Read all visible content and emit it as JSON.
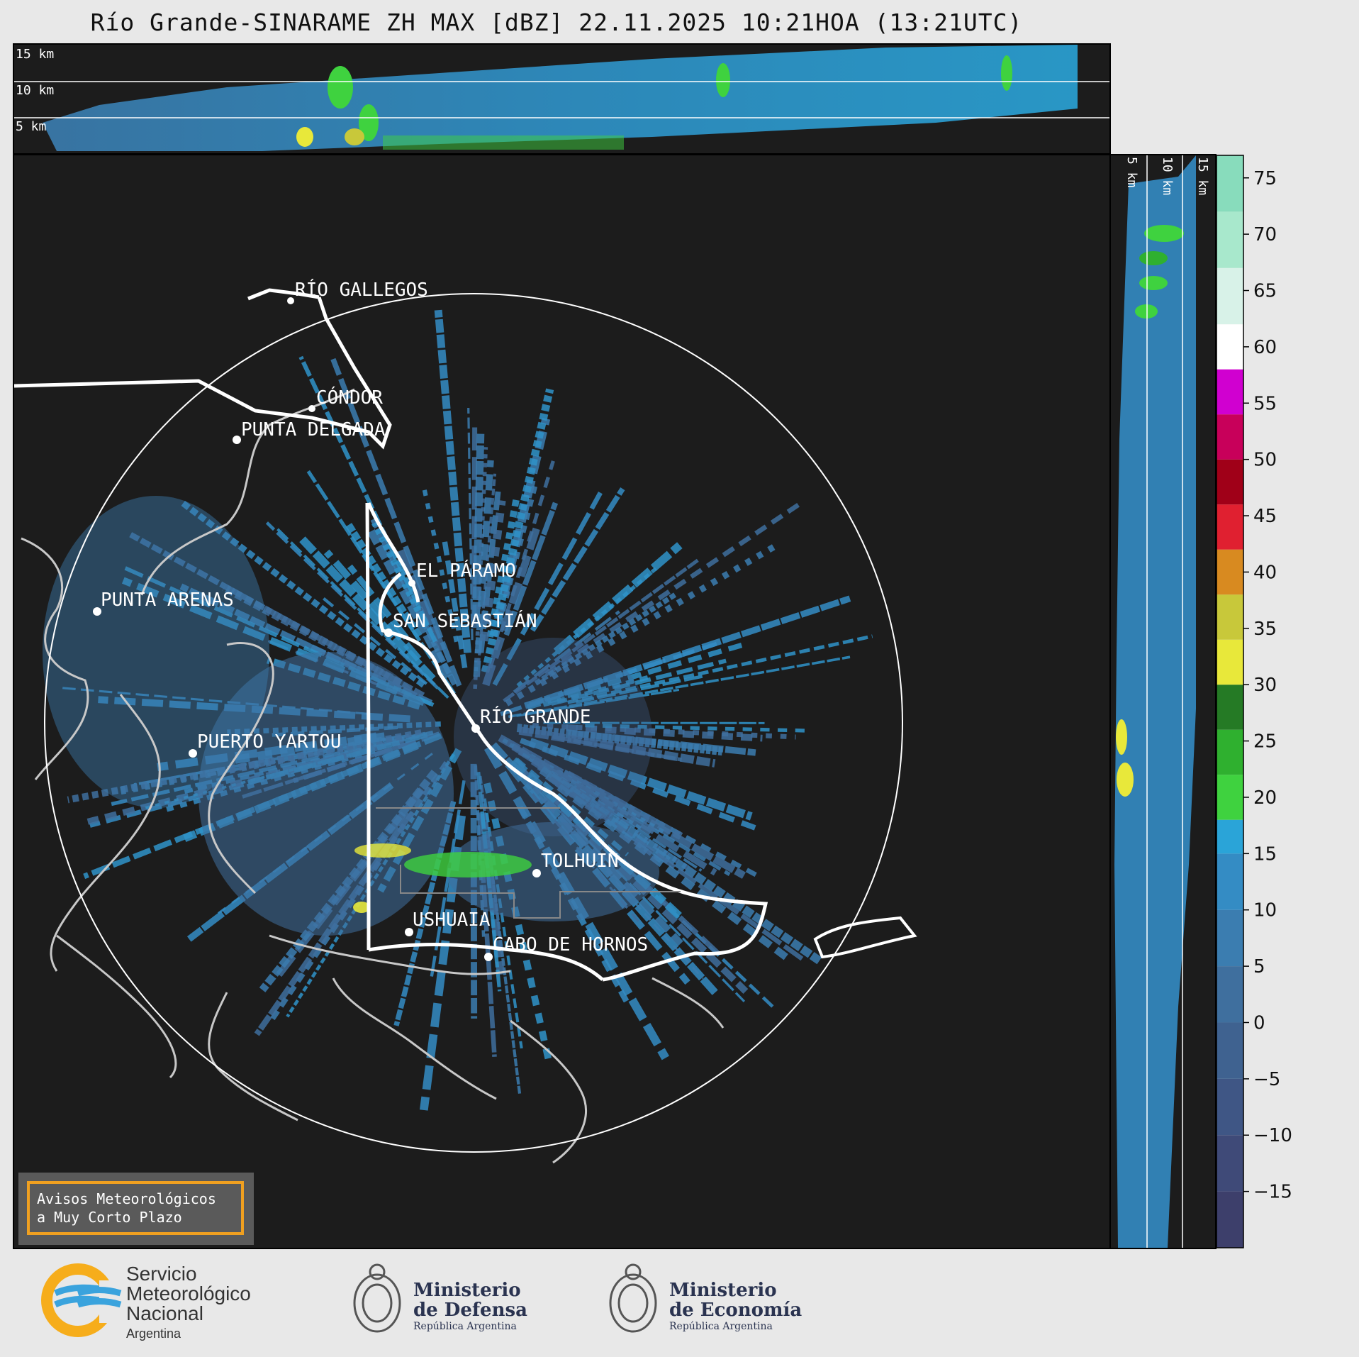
{
  "title": "Río Grande-SINARAME ZH MAX [dBZ] 22.11.2025 10:21HOA (13:21UTC)",
  "top_panel": {
    "height_labels": [
      "15 km",
      "10 km",
      "5 km"
    ]
  },
  "right_panel": {
    "height_labels": [
      "5 km",
      "10 km",
      "15 km"
    ]
  },
  "map": {
    "places": [
      {
        "name": "RÍO GALLEGOS"
      },
      {
        "name": "CÓNDOR"
      },
      {
        "name": "PUNTA DELGADA"
      },
      {
        "name": "EL PÁRAMO"
      },
      {
        "name": "SAN SEBASTIÁN"
      },
      {
        "name": "PUNTA ARENAS"
      },
      {
        "name": "RÍO GRANDE"
      },
      {
        "name": "PUERTO YARTOU"
      },
      {
        "name": "TOLHUIN"
      },
      {
        "name": "USHUAIA"
      },
      {
        "name": "CABO DE HORNOS"
      }
    ],
    "radar_site": "RÍO GRANDE"
  },
  "colorbar": {
    "unit": "dBZ",
    "min": -20,
    "max": 77,
    "ticks": [
      "75",
      "70",
      "65",
      "60",
      "55",
      "50",
      "45",
      "40",
      "35",
      "30",
      "25",
      "20",
      "15",
      "10",
      "5",
      "0",
      "−5",
      "−10",
      "−15"
    ],
    "tick_values": [
      75,
      70,
      65,
      60,
      55,
      50,
      45,
      40,
      35,
      30,
      25,
      20,
      15,
      10,
      5,
      0,
      -5,
      -10,
      -15
    ],
    "bands": [
      {
        "from": -20,
        "to": -15,
        "color": "#3d3f6b"
      },
      {
        "from": -15,
        "to": -10,
        "color": "#3f4a78"
      },
      {
        "from": -10,
        "to": -5,
        "color": "#3f5685"
      },
      {
        "from": -5,
        "to": 0,
        "color": "#3f6290"
      },
      {
        "from": 0,
        "to": 5,
        "color": "#3f6f9e"
      },
      {
        "from": 5,
        "to": 10,
        "color": "#3b7db0"
      },
      {
        "from": 10,
        "to": 15,
        "color": "#348cc4"
      },
      {
        "from": 15,
        "to": 18,
        "color": "#2aa4d8"
      },
      {
        "from": 18,
        "to": 22,
        "color": "#3fd23f"
      },
      {
        "from": 22,
        "to": 26,
        "color": "#2fb02f"
      },
      {
        "from": 26,
        "to": 30,
        "color": "#257a25"
      },
      {
        "from": 30,
        "to": 34,
        "color": "#e8e83a"
      },
      {
        "from": 34,
        "to": 38,
        "color": "#c8c83a"
      },
      {
        "from": 38,
        "to": 42,
        "color": "#d88a20"
      },
      {
        "from": 42,
        "to": 46,
        "color": "#e02030"
      },
      {
        "from": 46,
        "to": 50,
        "color": "#a00018"
      },
      {
        "from": 50,
        "to": 54,
        "color": "#c8005a"
      },
      {
        "from": 54,
        "to": 58,
        "color": "#d000d0"
      },
      {
        "from": 58,
        "to": 62,
        "color": "#ffffff"
      },
      {
        "from": 62,
        "to": 67,
        "color": "#d8f2e8"
      },
      {
        "from": 67,
        "to": 72,
        "color": "#a8e8cc"
      },
      {
        "from": 72,
        "to": 77,
        "color": "#88dcbc"
      }
    ]
  },
  "notice": {
    "line1": "Avisos Meteorológicos",
    "line2": "a Muy Corto Plazo"
  },
  "logos": {
    "smn": {
      "line1": "Servicio",
      "line2": "Meteorológico",
      "line3": "Nacional",
      "line4": "Argentina"
    },
    "defensa": {
      "line1": "Ministerio",
      "line2": "de Defensa",
      "line3": "República Argentina"
    },
    "economia": {
      "line1": "Ministerio",
      "line2": "de Economía",
      "line3": "República Argentina"
    }
  }
}
